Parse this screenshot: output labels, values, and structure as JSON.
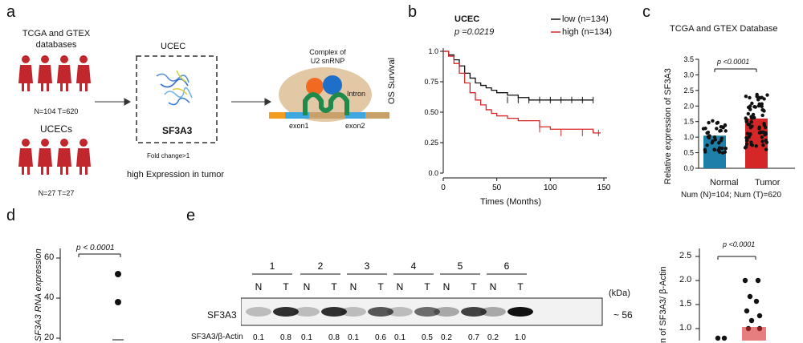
{
  "panel_a": {
    "label": "a",
    "db_text": [
      "TCGA  and  GTEX",
      "databases"
    ],
    "db_counts": "N=104 T=620",
    "ucecs_title": "UCECs",
    "ucecs_counts": "N=27 T=27",
    "box_title": "UCEC",
    "protein_name": "SF3A3",
    "fold_change": "Fold change>1",
    "high_expr": "high Expression in tumor",
    "complex_title": [
      "Complex of",
      "U2 snRNP"
    ],
    "intron": "Intron",
    "exon1": "exon1",
    "exon2": "exon2"
  },
  "panel_b": {
    "label": "b",
    "title": "UCEC",
    "pvalue": "p =0.0219",
    "legend": [
      {
        "text": "low  (n=134)",
        "color": "#111111"
      },
      {
        "text": "high (n=134)",
        "color": "#d62728"
      }
    ],
    "ylabel": "OS Survival",
    "xlabel": "Times (Months)",
    "xticks": [
      "0",
      "50",
      "100",
      "150"
    ],
    "yticks": [
      "0.0",
      "0.25",
      "0.50",
      "0.75",
      "1.0"
    ]
  },
  "panel_c": {
    "label": "c",
    "title": "TCGA and GTEX Database",
    "ylabel": [
      "Relative expression of SF3A3"
    ],
    "pvalue": "p <0.0001",
    "yticks": [
      "0.0",
      "0.5",
      "1.0",
      "1.5",
      "2.0",
      "2.5",
      "3.0",
      "3.5"
    ],
    "categories": [
      "Normal",
      "Tumor"
    ],
    "footer": "Num  (N)=104; Num (T)=620"
  },
  "panel_d": {
    "label": "d",
    "ylabel": "SF3A3 RNA expression",
    "pvalue": "p < 0.0001",
    "yticks": [
      "60",
      "40",
      "20"
    ]
  },
  "panel_e": {
    "label": "e",
    "lanes": [
      "1",
      "2",
      "3",
      "4",
      "5",
      "6"
    ],
    "nt": [
      "N",
      "T"
    ],
    "kda": "(kDa)",
    "band_label": "SF3A3",
    "marker": "~ 56",
    "ratio_label": "SF3A3/β-Actin",
    "ratios": [
      "0.1",
      "0.8",
      "0.1",
      "0.8",
      "0.1",
      "0.6",
      "0.1",
      "0.5",
      "0.2",
      "0.7",
      "0.2",
      "1.0"
    ]
  },
  "panel_f": {
    "ylabel": "n of SF3A3/ β-Actin",
    "pvalue": "p <0.0001",
    "yticks": [
      "2.5",
      "2.0",
      "1.5",
      "1.0"
    ]
  },
  "chart_data": [
    {
      "type": "line",
      "title": "UCEC",
      "xlabel": "Times (Months)",
      "ylabel": "OS Survival",
      "xlim": [
        0,
        150
      ],
      "ylim": [
        0,
        1.0
      ],
      "series": [
        {
          "name": "low (n=134)",
          "x": [
            0,
            5,
            10,
            15,
            20,
            25,
            30,
            35,
            40,
            45,
            50,
            60,
            70,
            80,
            100,
            120,
            140
          ],
          "y": [
            1.0,
            0.97,
            0.93,
            0.88,
            0.82,
            0.78,
            0.74,
            0.72,
            0.7,
            0.68,
            0.66,
            0.64,
            0.62,
            0.6,
            0.6,
            0.6,
            0.6
          ]
        },
        {
          "name": "high (n=134)",
          "x": [
            0,
            5,
            10,
            15,
            20,
            25,
            30,
            35,
            40,
            45,
            50,
            60,
            70,
            80,
            90,
            100,
            120,
            140,
            147
          ],
          "y": [
            1.0,
            0.96,
            0.9,
            0.82,
            0.74,
            0.66,
            0.6,
            0.56,
            0.52,
            0.49,
            0.47,
            0.45,
            0.43,
            0.43,
            0.38,
            0.36,
            0.36,
            0.33,
            0.33
          ]
        }
      ]
    },
    {
      "type": "bar",
      "title": "TCGA and GTEX Database",
      "ylabel": "Relative expression of SF3A3",
      "categories": [
        "Normal",
        "Tumor"
      ],
      "values": [
        1.05,
        1.6
      ],
      "colors": [
        "#1f7fa8",
        "#d62728"
      ],
      "ylim": [
        0,
        3.5
      ]
    }
  ]
}
